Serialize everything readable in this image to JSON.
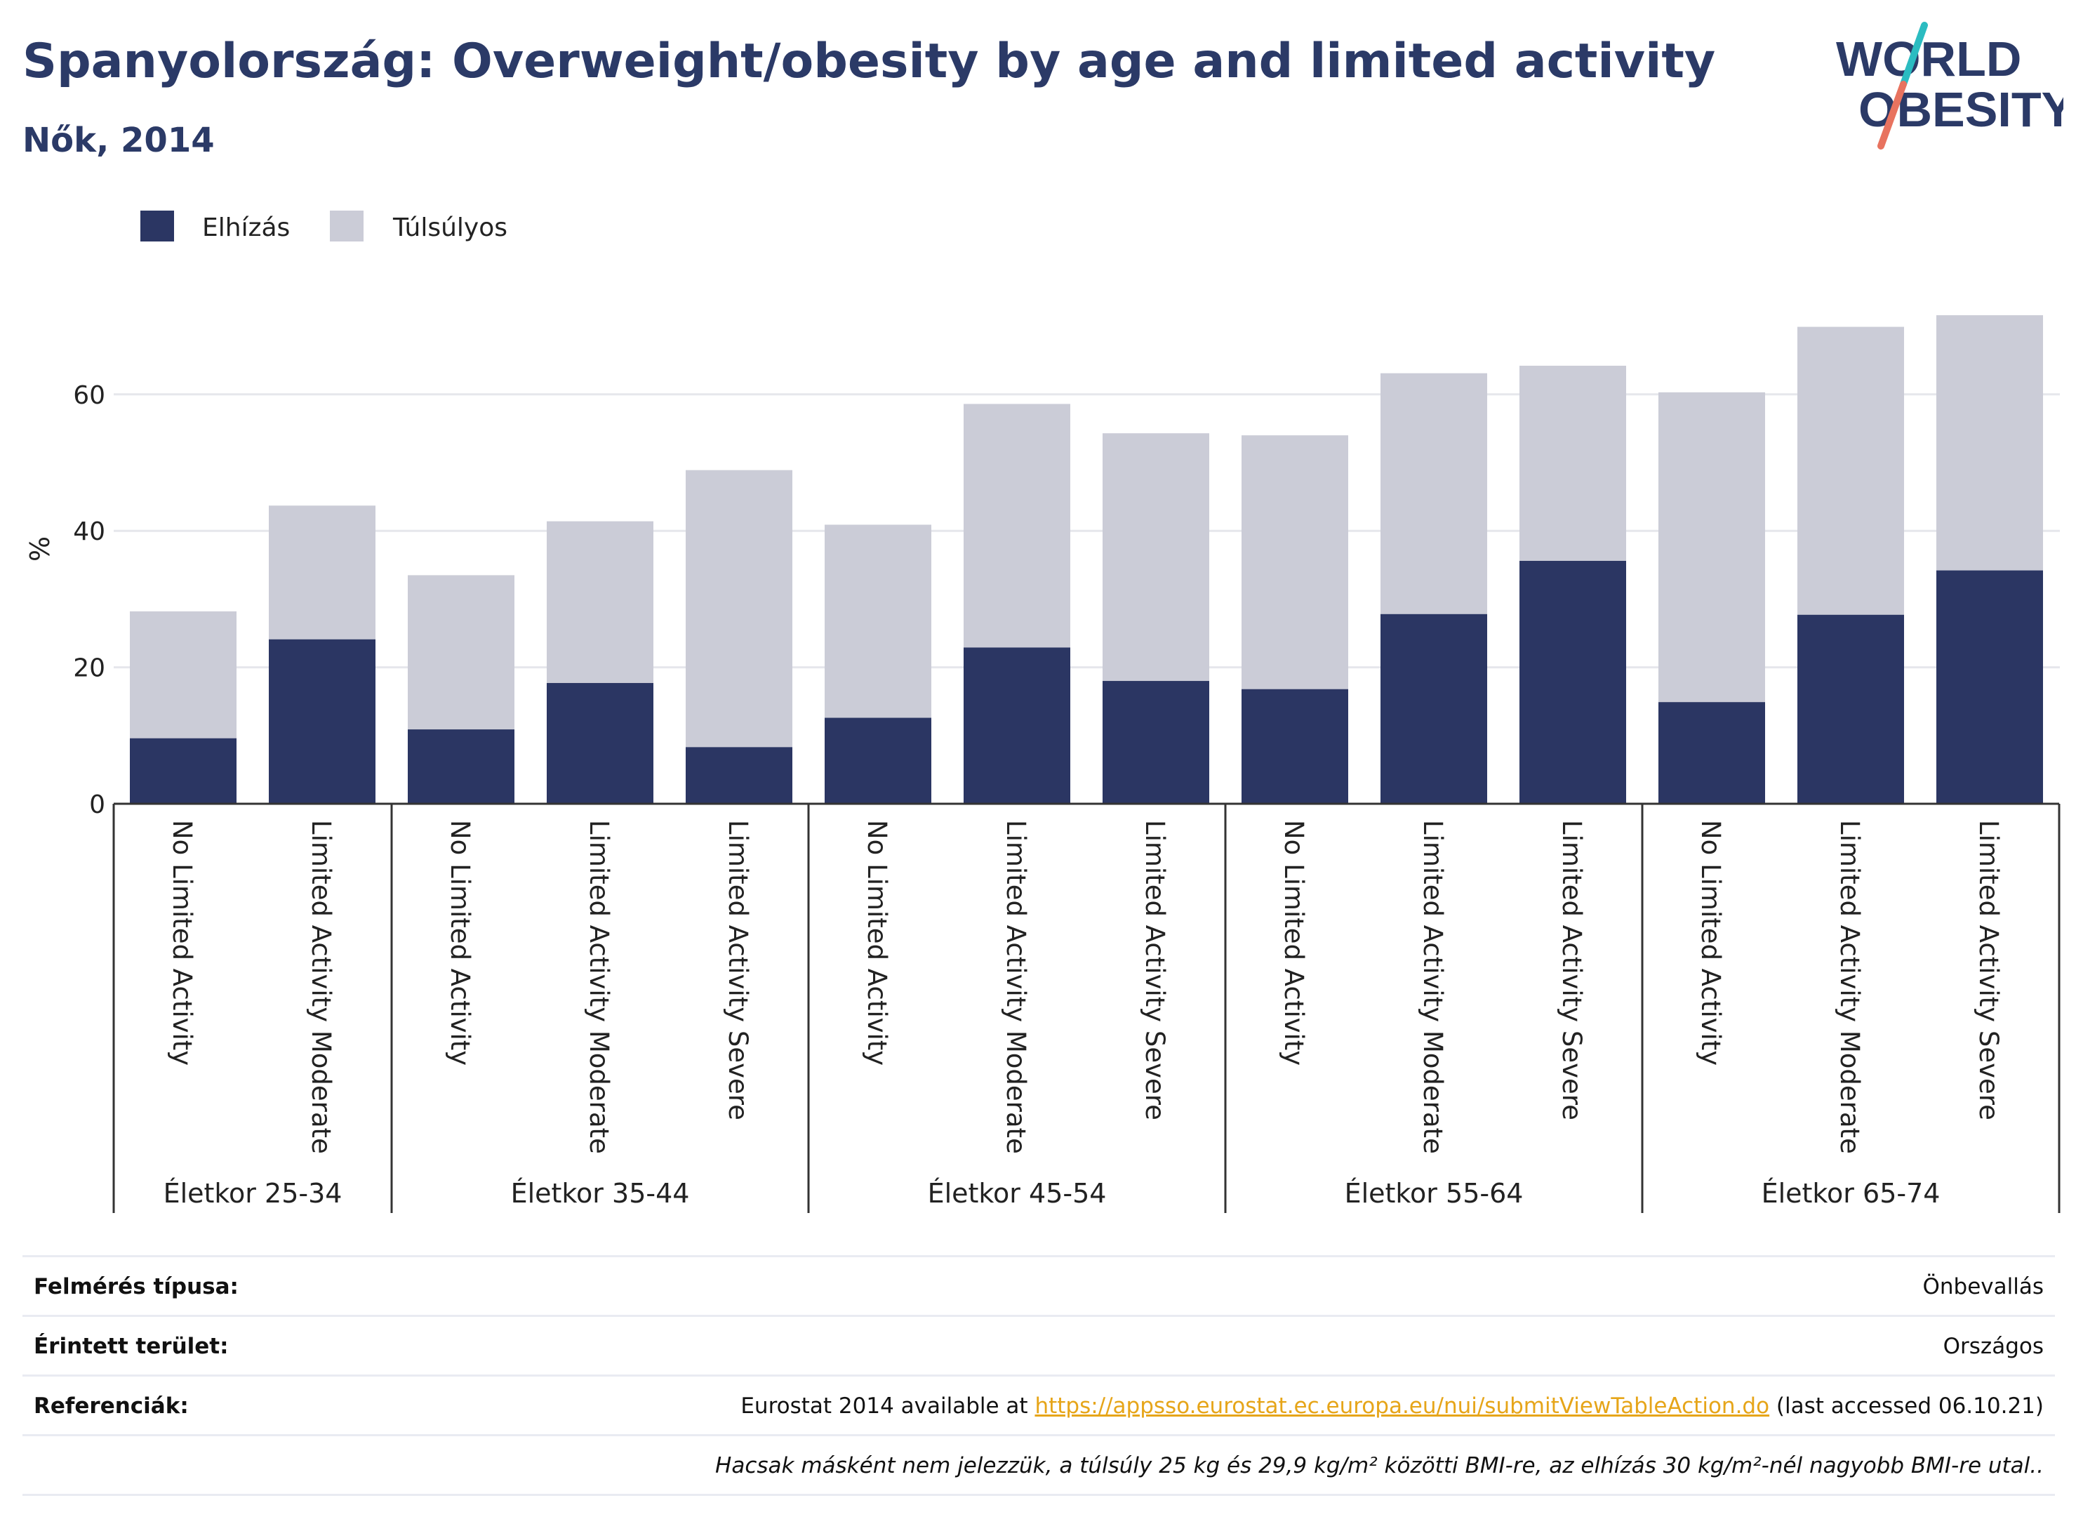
{
  "header": {
    "title": "Spanyolország: Overweight/obesity by age and limited activity",
    "subtitle": "Nők, 2014",
    "logo_line1": "WORLD",
    "logo_line2": "OBESITY"
  },
  "colors": {
    "obesity": "#2b3663",
    "overweight": "#cbccd7",
    "title": "#2b3a67",
    "link": "#e6a519",
    "logo_teal": "#2bbcc1",
    "logo_coral": "#e8735f"
  },
  "chart_data": {
    "type": "bar",
    "stacked": true,
    "ylabel": "%",
    "ylim": [
      0,
      75
    ],
    "yticks": [
      0,
      20,
      40,
      60
    ],
    "grid": true,
    "legend_position": "top-left",
    "groups": [
      {
        "label": "Életkor 25-34",
        "categories": [
          "No Limited Activity",
          "Limited Activity Moderate"
        ]
      },
      {
        "label": "Életkor 35-44",
        "categories": [
          "No Limited Activity",
          "Limited Activity Moderate",
          "Limited Activity Severe"
        ]
      },
      {
        "label": "Életkor 45-54",
        "categories": [
          "No Limited Activity",
          "Limited Activity Moderate",
          "Limited Activity Severe"
        ]
      },
      {
        "label": "Életkor 55-64",
        "categories": [
          "No Limited Activity",
          "Limited Activity Moderate",
          "Limited Activity Severe"
        ]
      },
      {
        "label": "Életkor 65-74",
        "categories": [
          "No Limited Activity",
          "Limited Activity Moderate",
          "Limited Activity Severe"
        ]
      }
    ],
    "series": [
      {
        "name": "Elhízás",
        "values": [
          9.6,
          24.1,
          10.9,
          17.7,
          8.3,
          12.6,
          22.9,
          18.0,
          16.8,
          27.8,
          35.6,
          14.9,
          27.7,
          34.2
        ]
      },
      {
        "name": "Túlsúlyos",
        "values": [
          18.6,
          19.6,
          22.6,
          23.7,
          40.6,
          28.3,
          35.7,
          36.3,
          37.2,
          35.3,
          28.6,
          45.4,
          42.2,
          37.4
        ]
      }
    ]
  },
  "footer": {
    "survey_label": "Felmérés típusa:",
    "survey_value": "Önbevallás",
    "area_label": "Érintett terület:",
    "area_value": "Országos",
    "ref_label": "Referenciák:",
    "ref_prefix": "Eurostat 2014 available at ",
    "ref_link": "https://appsso.eurostat.ec.europa.eu/nui/submitViewTableAction.do",
    "ref_suffix": " (last accessed 06.10.21)",
    "note": "Hacsak másként nem jelezzük, a túlsúly 25 kg és 29,9 kg/m² közötti BMI-re, az elhízás 30 kg/m²-nél nagyobb BMI-re utal.."
  }
}
